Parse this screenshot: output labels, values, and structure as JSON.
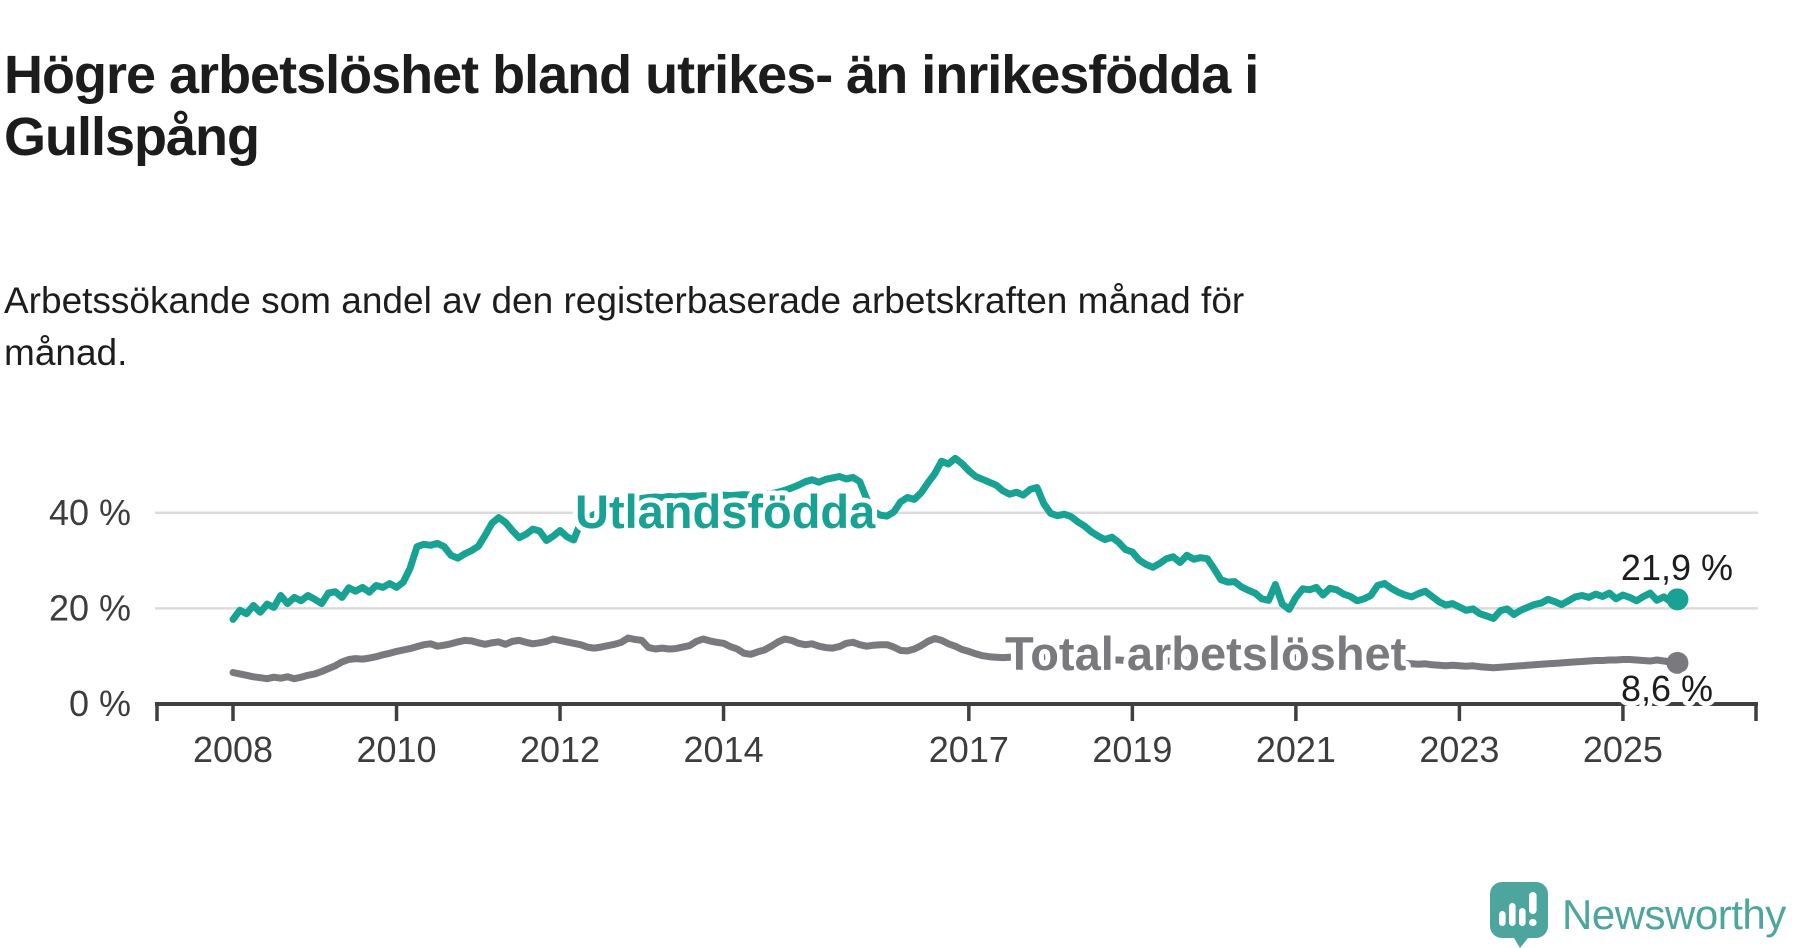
{
  "chart_data": {
    "type": "line",
    "title": "Högre arbetslöshet bland utrikes- än inrikesfödda i Gullspång",
    "title_lines": [
      "Högre arbetslöshet bland utrikes- än inrikesfödda i",
      "Gullspång"
    ],
    "subtitle": "Arbetssökande som andel av den registerbaserade arbetskraften månad för månad.",
    "subtitle_lines": [
      "Arbetssökande som andel av den registerbaserade arbetskraften månad för",
      "månad."
    ],
    "unit": "%",
    "frequency": "monthly",
    "period_start": "2008-01",
    "period_end": "2025-09",
    "ylim": [
      0,
      55
    ],
    "grid": "horizontal-only",
    "legend_position": "inline-labels",
    "colors": {
      "accent_teal": "#17a294",
      "series_gray": "#7a7a7e",
      "text_dark": "#1d1d1d",
      "axis_text": "#3d3d3d",
      "gridline": "#dcdcdc",
      "axis_line": "#3f3f3f",
      "background": "#ffffff",
      "logo_teal": "#4da69e"
    },
    "y_axis": {
      "ticks": [
        {
          "value": 40,
          "label": "40 %"
        },
        {
          "value": 20,
          "label": "20 %"
        },
        {
          "value": 0,
          "label": "0 %"
        }
      ],
      "gridline_values": [
        40,
        20
      ]
    },
    "x_axis": {
      "tick_years": [
        2008,
        2010,
        2012,
        2014,
        2017,
        2019,
        2021,
        2023,
        2025
      ],
      "tick_labels": [
        "2008",
        "2010",
        "2012",
        "2014",
        "2017",
        "2019",
        "2021",
        "2023",
        "2025"
      ]
    },
    "series": [
      {
        "id": "utlandsfodda",
        "name": "Utlandsfödda",
        "label": "Utlandsfödda",
        "end_label": "21,9 %",
        "end_value": 21.9,
        "color": "#17a294",
        "values": [
          17.7,
          19.6,
          18.9,
          20.6,
          19.2,
          20.9,
          20.2,
          22.7,
          21.0,
          22.3,
          21.6,
          22.7,
          21.9,
          21.0,
          23.2,
          23.5,
          22.3,
          24.3,
          23.6,
          24.4,
          23.4,
          24.8,
          24.4,
          25.2,
          24.4,
          25.5,
          28.4,
          32.9,
          33.4,
          33.2,
          33.6,
          32.9,
          31.1,
          30.5,
          31.4,
          32.1,
          33.0,
          35.3,
          37.8,
          39.0,
          38.0,
          36.3,
          34.8,
          35.5,
          36.6,
          36.2,
          34.2,
          35.1,
          36.3,
          35.0,
          34.3,
          37.9,
          38.8,
          39.6,
          40.2,
          40.9,
          41.5,
          42.0,
          42.4,
          42.8,
          43.0,
          43.2,
          43.3,
          43.2,
          43.4,
          43.3,
          43.5,
          43.4,
          43.5,
          43.6,
          43.5,
          43.6,
          43.7,
          43.6,
          43.7,
          43.8,
          43.7,
          43.8,
          43.9,
          44.0,
          44.3,
          44.7,
          45.2,
          45.8,
          46.5,
          46.9,
          46.4,
          47.0,
          47.3,
          47.6,
          47.1,
          47.4,
          46.5,
          42.9,
          40.3,
          39.5,
          39.3,
          40.2,
          42.3,
          43.2,
          42.8,
          44.2,
          46.3,
          48.2,
          50.8,
          50.2,
          51.4,
          50.3,
          48.8,
          47.6,
          47.0,
          46.4,
          45.8,
          44.6,
          43.9,
          44.3,
          43.7,
          44.9,
          45.3,
          41.9,
          39.9,
          39.4,
          39.7,
          39.2,
          38.1,
          37.2,
          36.0,
          35.1,
          34.4,
          34.9,
          33.8,
          32.3,
          31.8,
          30.1,
          29.2,
          28.6,
          29.4,
          30.4,
          30.8,
          29.6,
          31.1,
          30.3,
          30.6,
          30.4,
          28.3,
          26.0,
          25.5,
          25.6,
          24.5,
          23.8,
          23.2,
          22.0,
          21.7,
          25.0,
          20.9,
          19.8,
          22.3,
          24.1,
          23.9,
          24.4,
          22.8,
          24.2,
          23.9,
          23.0,
          22.5,
          21.6,
          22.0,
          22.7,
          24.8,
          25.2,
          24.2,
          23.4,
          22.8,
          22.4,
          23.1,
          23.6,
          22.5,
          21.4,
          20.7,
          21.0,
          20.3,
          19.6,
          19.9,
          18.9,
          18.4,
          17.9,
          19.5,
          19.9,
          18.7,
          19.6,
          20.2,
          20.8,
          21.1,
          21.9,
          21.4,
          20.8,
          21.6,
          22.4,
          22.7,
          22.3,
          23.0,
          22.5,
          23.2,
          22.0,
          22.8,
          22.3,
          21.6,
          22.5,
          23.2,
          21.7,
          22.4,
          21.4,
          21.9
        ]
      },
      {
        "id": "total",
        "name": "Total arbetslöshet",
        "label": "Total arbetslöshet",
        "end_label": "8,6 %",
        "end_value": 8.6,
        "color": "#7a7a7e",
        "values": [
          6.6,
          6.3,
          6.0,
          5.7,
          5.5,
          5.3,
          5.6,
          5.4,
          5.7,
          5.3,
          5.6,
          6.0,
          6.3,
          6.8,
          7.4,
          8.0,
          8.8,
          9.3,
          9.5,
          9.4,
          9.6,
          9.9,
          10.3,
          10.6,
          11.0,
          11.3,
          11.6,
          12.0,
          12.4,
          12.6,
          12.1,
          12.3,
          12.6,
          13.0,
          13.3,
          13.2,
          12.8,
          12.5,
          12.8,
          13.0,
          12.5,
          13.1,
          13.3,
          12.9,
          12.6,
          12.8,
          13.1,
          13.6,
          13.3,
          13.0,
          12.7,
          12.4,
          11.9,
          11.7,
          11.9,
          12.2,
          12.5,
          12.9,
          13.8,
          13.5,
          13.3,
          11.8,
          11.5,
          11.7,
          11.5,
          11.6,
          11.9,
          12.2,
          13.1,
          13.6,
          13.2,
          12.9,
          12.7,
          12.0,
          11.5,
          10.6,
          10.4,
          10.9,
          11.3,
          12.1,
          13.0,
          13.6,
          13.3,
          12.7,
          12.4,
          12.6,
          12.1,
          11.8,
          11.7,
          12.0,
          12.7,
          12.9,
          12.4,
          12.1,
          12.3,
          12.4,
          12.4,
          11.9,
          11.2,
          11.1,
          11.5,
          12.2,
          13.1,
          13.7,
          13.3,
          12.6,
          12.1,
          11.4,
          11.0,
          10.5,
          10.1,
          9.9,
          9.8,
          9.7,
          9.8,
          9.9,
          10.0,
          10.1,
          10.0,
          9.9,
          9.9,
          9.8,
          9.7,
          9.6,
          9.5,
          9.4,
          9.4,
          9.3,
          9.3,
          9.2,
          9.2,
          9.1,
          9.1,
          9.0,
          9.0,
          8.9,
          8.9,
          9.0,
          9.0,
          9.1,
          9.1,
          9.2,
          9.2,
          9.3,
          9.4,
          9.6,
          9.9,
          10.3,
          10.6,
          10.7,
          10.6,
          10.5,
          10.3,
          10.1,
          9.9,
          9.8,
          9.7,
          9.6,
          9.5,
          9.4,
          9.3,
          9.2,
          9.1,
          9.0,
          9.0,
          8.9,
          8.9,
          8.8,
          8.8,
          8.9,
          8.7,
          8.6,
          8.5,
          8.4,
          8.3,
          8.4,
          8.2,
          8.1,
          8.0,
          8.1,
          8.0,
          7.9,
          8.0,
          7.8,
          7.7,
          7.6,
          7.7,
          7.8,
          7.9,
          8.0,
          8.1,
          8.2,
          8.3,
          8.4,
          8.5,
          8.6,
          8.7,
          8.8,
          8.9,
          9.0,
          9.1,
          9.1,
          9.2,
          9.2,
          9.3,
          9.3,
          9.2,
          9.1,
          9.0,
          9.2,
          9.0,
          8.8,
          8.6
        ]
      }
    ]
  },
  "footer": {
    "brand": "Newsworthy"
  }
}
